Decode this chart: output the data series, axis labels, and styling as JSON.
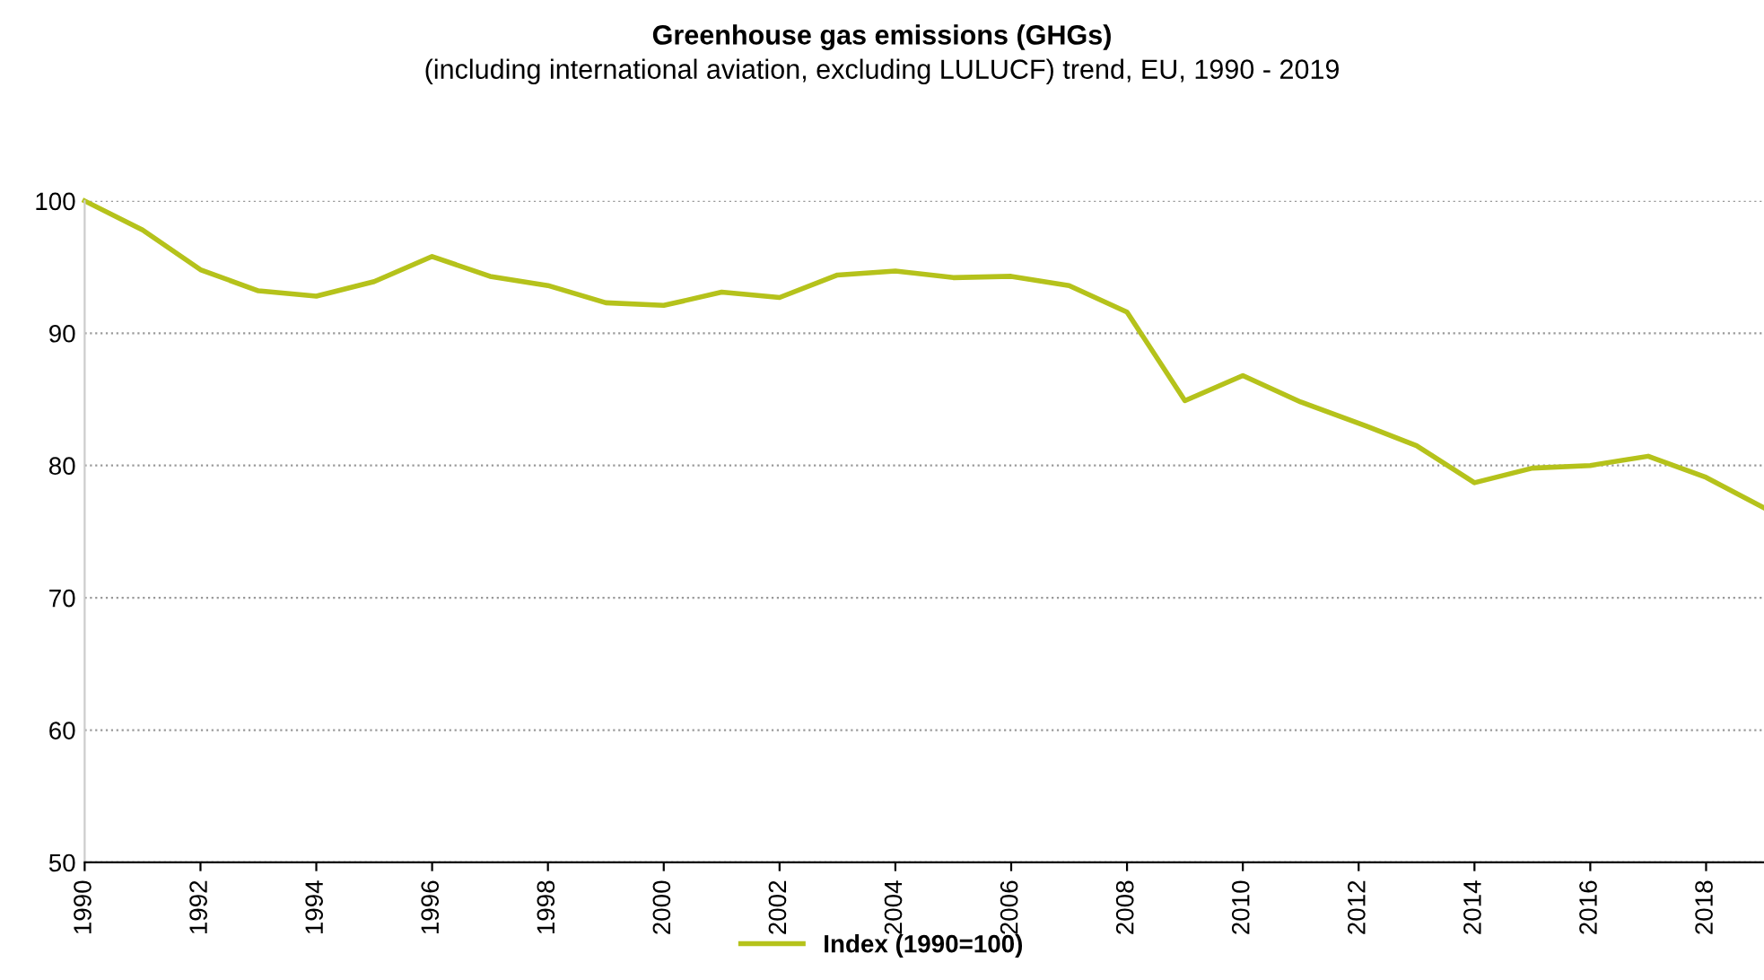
{
  "chart_data": {
    "type": "line",
    "title": "Greenhouse gas emissions (GHGs)",
    "subtitle": "(including international aviation, excluding LULUCF) trend, EU, 1990 - 2019",
    "x": [
      1990,
      1991,
      1992,
      1993,
      1994,
      1995,
      1996,
      1997,
      1998,
      1999,
      2000,
      2001,
      2002,
      2003,
      2004,
      2005,
      2006,
      2007,
      2008,
      2009,
      2010,
      2011,
      2012,
      2013,
      2014,
      2015,
      2016,
      2017,
      2018,
      2019
    ],
    "series": [
      {
        "name": "Index (1990=100)",
        "color": "#b5c21b",
        "values": [
          100,
          97.8,
          94.8,
          93.2,
          92.8,
          93.9,
          95.8,
          94.3,
          93.6,
          92.3,
          92.1,
          93.1,
          92.7,
          94.4,
          94.7,
          94.2,
          94.3,
          93.6,
          91.6,
          84.9,
          86.8,
          84.8,
          83.2,
          81.5,
          78.7,
          79.8,
          80.0,
          80.7,
          79.1,
          76.8
        ]
      }
    ],
    "xlim": [
      1990,
      2019
    ],
    "xticks": [
      1990,
      1992,
      1994,
      1996,
      1998,
      2000,
      2002,
      2004,
      2006,
      2008,
      2010,
      2012,
      2014,
      2016,
      2018
    ],
    "ylim": [
      50,
      100
    ],
    "yticks": [
      50,
      60,
      70,
      80,
      90,
      100
    ],
    "grid": "y",
    "legend": "bottom",
    "marker": "none",
    "line_style": "solid"
  }
}
